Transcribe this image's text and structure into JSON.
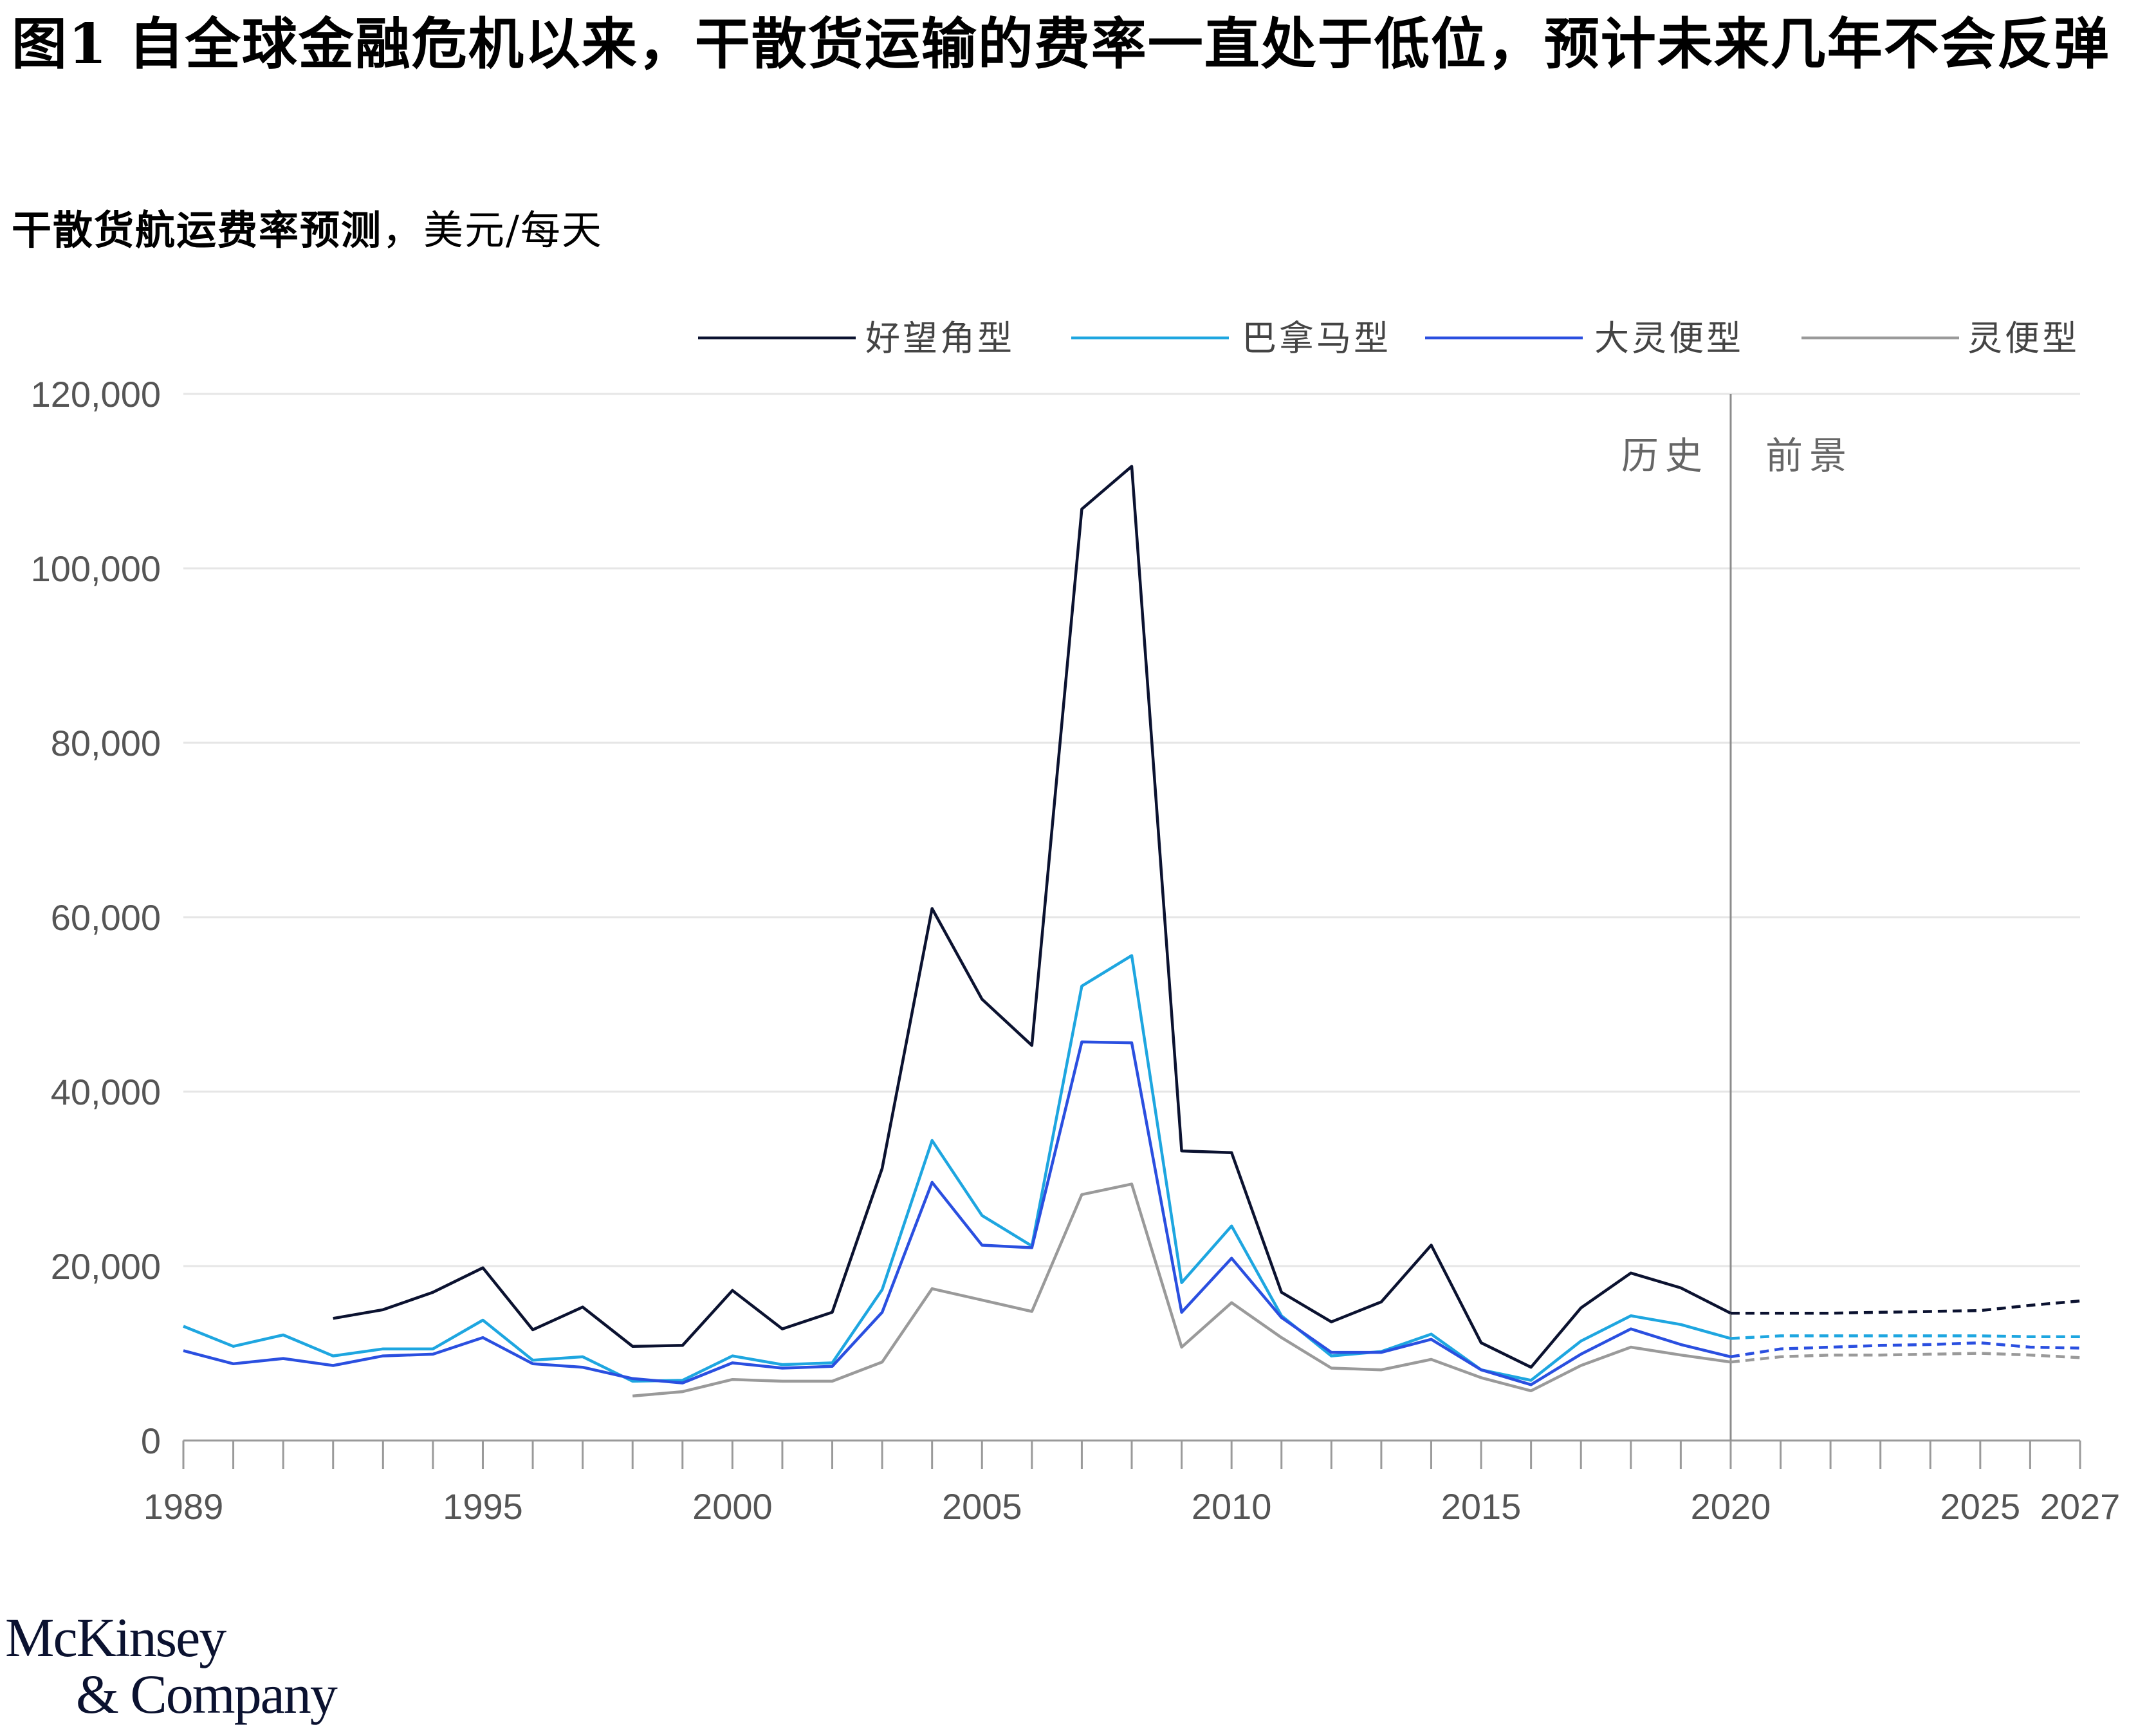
{
  "title": "图1 自全球金融危机以来，干散货运输的费率一直处于低位，预计未来几年不会反弹",
  "subtitle": {
    "bold_part": "干散货航运费率预测",
    "normal_part": "，美元/每天"
  },
  "logo": {
    "line1": "McKinsey",
    "line2": "& Company"
  },
  "chart_data": {
    "type": "line",
    "ylim": [
      0,
      120000
    ],
    "y_ticks": [
      0,
      20000,
      40000,
      60000,
      80000,
      100000,
      120000
    ],
    "y_tick_labels": [
      "0",
      "20,000",
      "40,000",
      "60,000",
      "80,000",
      "100,000",
      "120,000"
    ],
    "xlim": [
      1989,
      2027
    ],
    "x_tick_labels": [
      "1989",
      "1995",
      "2000",
      "2005",
      "2010",
      "2015",
      "2020",
      "2025",
      "2027"
    ],
    "x_tick_values": [
      1989,
      1995,
      2000,
      2005,
      2010,
      2015,
      2020,
      2025,
      2027
    ],
    "divider_year": 2020,
    "region_labels": {
      "history": "历史",
      "forecast": "前景"
    },
    "grid": true,
    "legend_placement": "top-right",
    "series": [
      {
        "name": "好望角型",
        "color": "#0b1230",
        "history": [
          [
            1992,
            14000
          ],
          [
            1993,
            15000
          ],
          [
            1994,
            17000
          ],
          [
            1995,
            19800
          ],
          [
            1996,
            12700
          ],
          [
            1997,
            15300
          ],
          [
            1998,
            10800
          ],
          [
            1999,
            10900
          ],
          [
            2000,
            17200
          ],
          [
            2001,
            12800
          ],
          [
            2002,
            14700
          ],
          [
            2003,
            31200
          ],
          [
            2004,
            61000
          ],
          [
            2005,
            50600
          ],
          [
            2006,
            45300
          ],
          [
            2007,
            106800
          ],
          [
            2008,
            111700
          ],
          [
            2009,
            33200
          ],
          [
            2010,
            33000
          ],
          [
            2011,
            17000
          ],
          [
            2012,
            13600
          ],
          [
            2013,
            15900
          ],
          [
            2014,
            22400
          ],
          [
            2015,
            11200
          ],
          [
            2016,
            8400
          ],
          [
            2017,
            15200
          ],
          [
            2018,
            19200
          ],
          [
            2019,
            17500
          ],
          [
            2020,
            14600
          ]
        ],
        "forecast": [
          [
            2020,
            14600
          ],
          [
            2021,
            14600
          ],
          [
            2022,
            14600
          ],
          [
            2023,
            14700
          ],
          [
            2024,
            14800
          ],
          [
            2025,
            14900
          ],
          [
            2026,
            15500
          ],
          [
            2027,
            16000
          ]
        ]
      },
      {
        "name": "巴拿马型",
        "color": "#1ea6e0",
        "history": [
          [
            1989,
            13100
          ],
          [
            1990,
            10800
          ],
          [
            1991,
            12100
          ],
          [
            1992,
            9700
          ],
          [
            1993,
            10500
          ],
          [
            1994,
            10500
          ],
          [
            1995,
            13800
          ],
          [
            1996,
            9200
          ],
          [
            1997,
            9600
          ],
          [
            1998,
            6800
          ],
          [
            1999,
            6900
          ],
          [
            2000,
            9700
          ],
          [
            2001,
            8700
          ],
          [
            2002,
            8900
          ],
          [
            2003,
            17300
          ],
          [
            2004,
            34400
          ],
          [
            2005,
            25800
          ],
          [
            2006,
            22300
          ],
          [
            2007,
            52100
          ],
          [
            2008,
            55600
          ],
          [
            2009,
            18100
          ],
          [
            2010,
            24600
          ],
          [
            2011,
            14300
          ],
          [
            2012,
            9700
          ],
          [
            2013,
            10200
          ],
          [
            2014,
            12200
          ],
          [
            2015,
            8100
          ],
          [
            2016,
            6900
          ],
          [
            2017,
            11400
          ],
          [
            2018,
            14300
          ],
          [
            2019,
            13300
          ],
          [
            2020,
            11700
          ]
        ],
        "forecast": [
          [
            2020,
            11700
          ],
          [
            2021,
            12000
          ],
          [
            2022,
            12000
          ],
          [
            2023,
            12000
          ],
          [
            2024,
            12000
          ],
          [
            2025,
            12000
          ],
          [
            2026,
            11900
          ],
          [
            2027,
            11900
          ]
        ]
      },
      {
        "name": "大灵便型",
        "color": "#2a4fe0",
        "history": [
          [
            1989,
            10300
          ],
          [
            1990,
            8800
          ],
          [
            1991,
            9400
          ],
          [
            1992,
            8600
          ],
          [
            1993,
            9700
          ],
          [
            1994,
            9900
          ],
          [
            1995,
            11800
          ],
          [
            1996,
            8800
          ],
          [
            1997,
            8400
          ],
          [
            1998,
            7100
          ],
          [
            1999,
            6600
          ],
          [
            2000,
            8900
          ],
          [
            2001,
            8300
          ],
          [
            2002,
            8500
          ],
          [
            2003,
            14700
          ],
          [
            2004,
            29600
          ],
          [
            2005,
            22400
          ],
          [
            2006,
            22100
          ],
          [
            2007,
            45700
          ],
          [
            2008,
            45600
          ],
          [
            2009,
            14700
          ],
          [
            2010,
            20900
          ],
          [
            2011,
            14100
          ],
          [
            2012,
            10100
          ],
          [
            2013,
            10100
          ],
          [
            2014,
            11600
          ],
          [
            2015,
            8100
          ],
          [
            2016,
            6400
          ],
          [
            2017,
            9900
          ],
          [
            2018,
            12800
          ],
          [
            2019,
            11000
          ],
          [
            2020,
            9600
          ]
        ],
        "forecast": [
          [
            2020,
            9600
          ],
          [
            2021,
            10500
          ],
          [
            2022,
            10700
          ],
          [
            2023,
            10900
          ],
          [
            2024,
            11000
          ],
          [
            2025,
            11200
          ],
          [
            2026,
            10700
          ],
          [
            2027,
            10600
          ]
        ]
      },
      {
        "name": "灵便型",
        "color": "#9a9a9a",
        "history": [
          [
            1998,
            5100
          ],
          [
            1999,
            5600
          ],
          [
            2000,
            7000
          ],
          [
            2001,
            6800
          ],
          [
            2002,
            6800
          ],
          [
            2003,
            9000
          ],
          [
            2004,
            17400
          ],
          [
            2005,
            16100
          ],
          [
            2006,
            14800
          ],
          [
            2007,
            28200
          ],
          [
            2008,
            29400
          ],
          [
            2009,
            10700
          ],
          [
            2010,
            15800
          ],
          [
            2011,
            11800
          ],
          [
            2012,
            8300
          ],
          [
            2013,
            8100
          ],
          [
            2014,
            9300
          ],
          [
            2015,
            7200
          ],
          [
            2016,
            5700
          ],
          [
            2017,
            8600
          ],
          [
            2018,
            10700
          ],
          [
            2019,
            9800
          ],
          [
            2020,
            9000
          ]
        ],
        "forecast": [
          [
            2020,
            9000
          ],
          [
            2021,
            9600
          ],
          [
            2022,
            9800
          ],
          [
            2023,
            9800
          ],
          [
            2024,
            9900
          ],
          [
            2025,
            10000
          ],
          [
            2026,
            9800
          ],
          [
            2027,
            9500
          ]
        ]
      }
    ]
  }
}
